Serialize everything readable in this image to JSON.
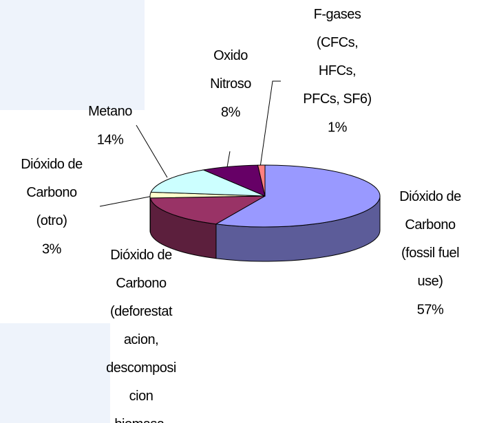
{
  "chart_data": {
    "type": "pie3d",
    "categories": [
      "Dióxido de\nCarbono\n(fossil fuel\nuse)",
      "Dióxido de\nCarbono\n(deforestat\nacion,\ndescomposi\ncion\nbiomasa,",
      "Dióxido de\nCarbono\n(otro)",
      "Metano",
      "Oxido\nNitroso",
      "F-gases\n(CFCs,\nHFCs,\nPFCs, SF6)"
    ],
    "values": [
      57,
      17,
      3,
      14,
      8,
      1
    ],
    "value_labels": [
      "57%",
      null,
      "3%",
      "14%",
      "8%",
      "1%"
    ],
    "colors": [
      "#9999ff",
      "#993366",
      "#ffffcc",
      "#ccffff",
      "#660066",
      "#ff8080"
    ]
  }
}
